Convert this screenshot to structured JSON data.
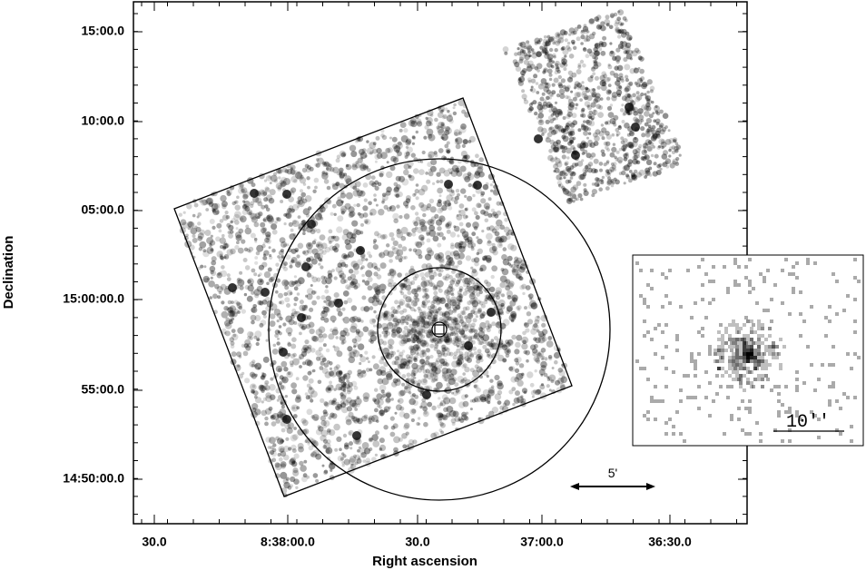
{
  "x_axis": {
    "label": "Right ascension",
    "ticks": [
      "30.0",
      "8:38:00.0",
      "30.0",
      "37:00.0",
      "36:30.0"
    ]
  },
  "y_axis": {
    "label": "Declination",
    "ticks": [
      "15:00.0",
      "10:00.0",
      "05:00.0",
      "15:00:00.0",
      "55:00.0",
      "14:50:00.0"
    ]
  },
  "scale_bar": "5'",
  "inset": {
    "scale_bar": "10''"
  }
}
